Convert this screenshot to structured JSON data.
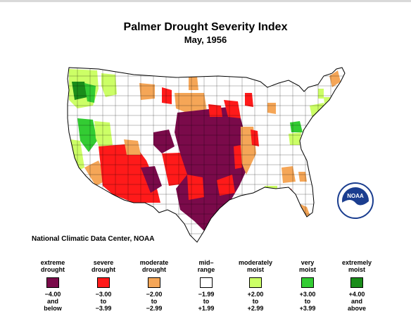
{
  "title": "Palmer Drought Severity Index",
  "subtitle": "May, 1956",
  "credit": "National Climatic Data Center, NOAA",
  "logo": {
    "text": "NOAA",
    "icon": "noaa-logo"
  },
  "map": {
    "background": "#ffffff",
    "border": "#000000"
  },
  "legend": [
    {
      "label": "extreme\ndrought",
      "color": "#7a0a4a",
      "range": "−4.00\nand\nbelow"
    },
    {
      "label": "severe\ndrought",
      "color": "#ff1a1a",
      "range": "−3.00\nto\n−3.99"
    },
    {
      "label": "moderate\ndrought",
      "color": "#f5a657",
      "range": "−2.00\nto\n−2.99"
    },
    {
      "label": "mid–\nrange",
      "color": "#ffffff",
      "range": "−1.99\nto\n+1.99"
    },
    {
      "label": "moderately\nmoist",
      "color": "#ccff66",
      "range": "+2.00\nto\n+2.99"
    },
    {
      "label": "very\nmoist",
      "color": "#33cc33",
      "range": "+3.00\nto\n+3.99"
    },
    {
      "label": "extremely\nmoist",
      "color": "#1a8c1a",
      "range": "+4.00\nand\nabove"
    }
  ]
}
